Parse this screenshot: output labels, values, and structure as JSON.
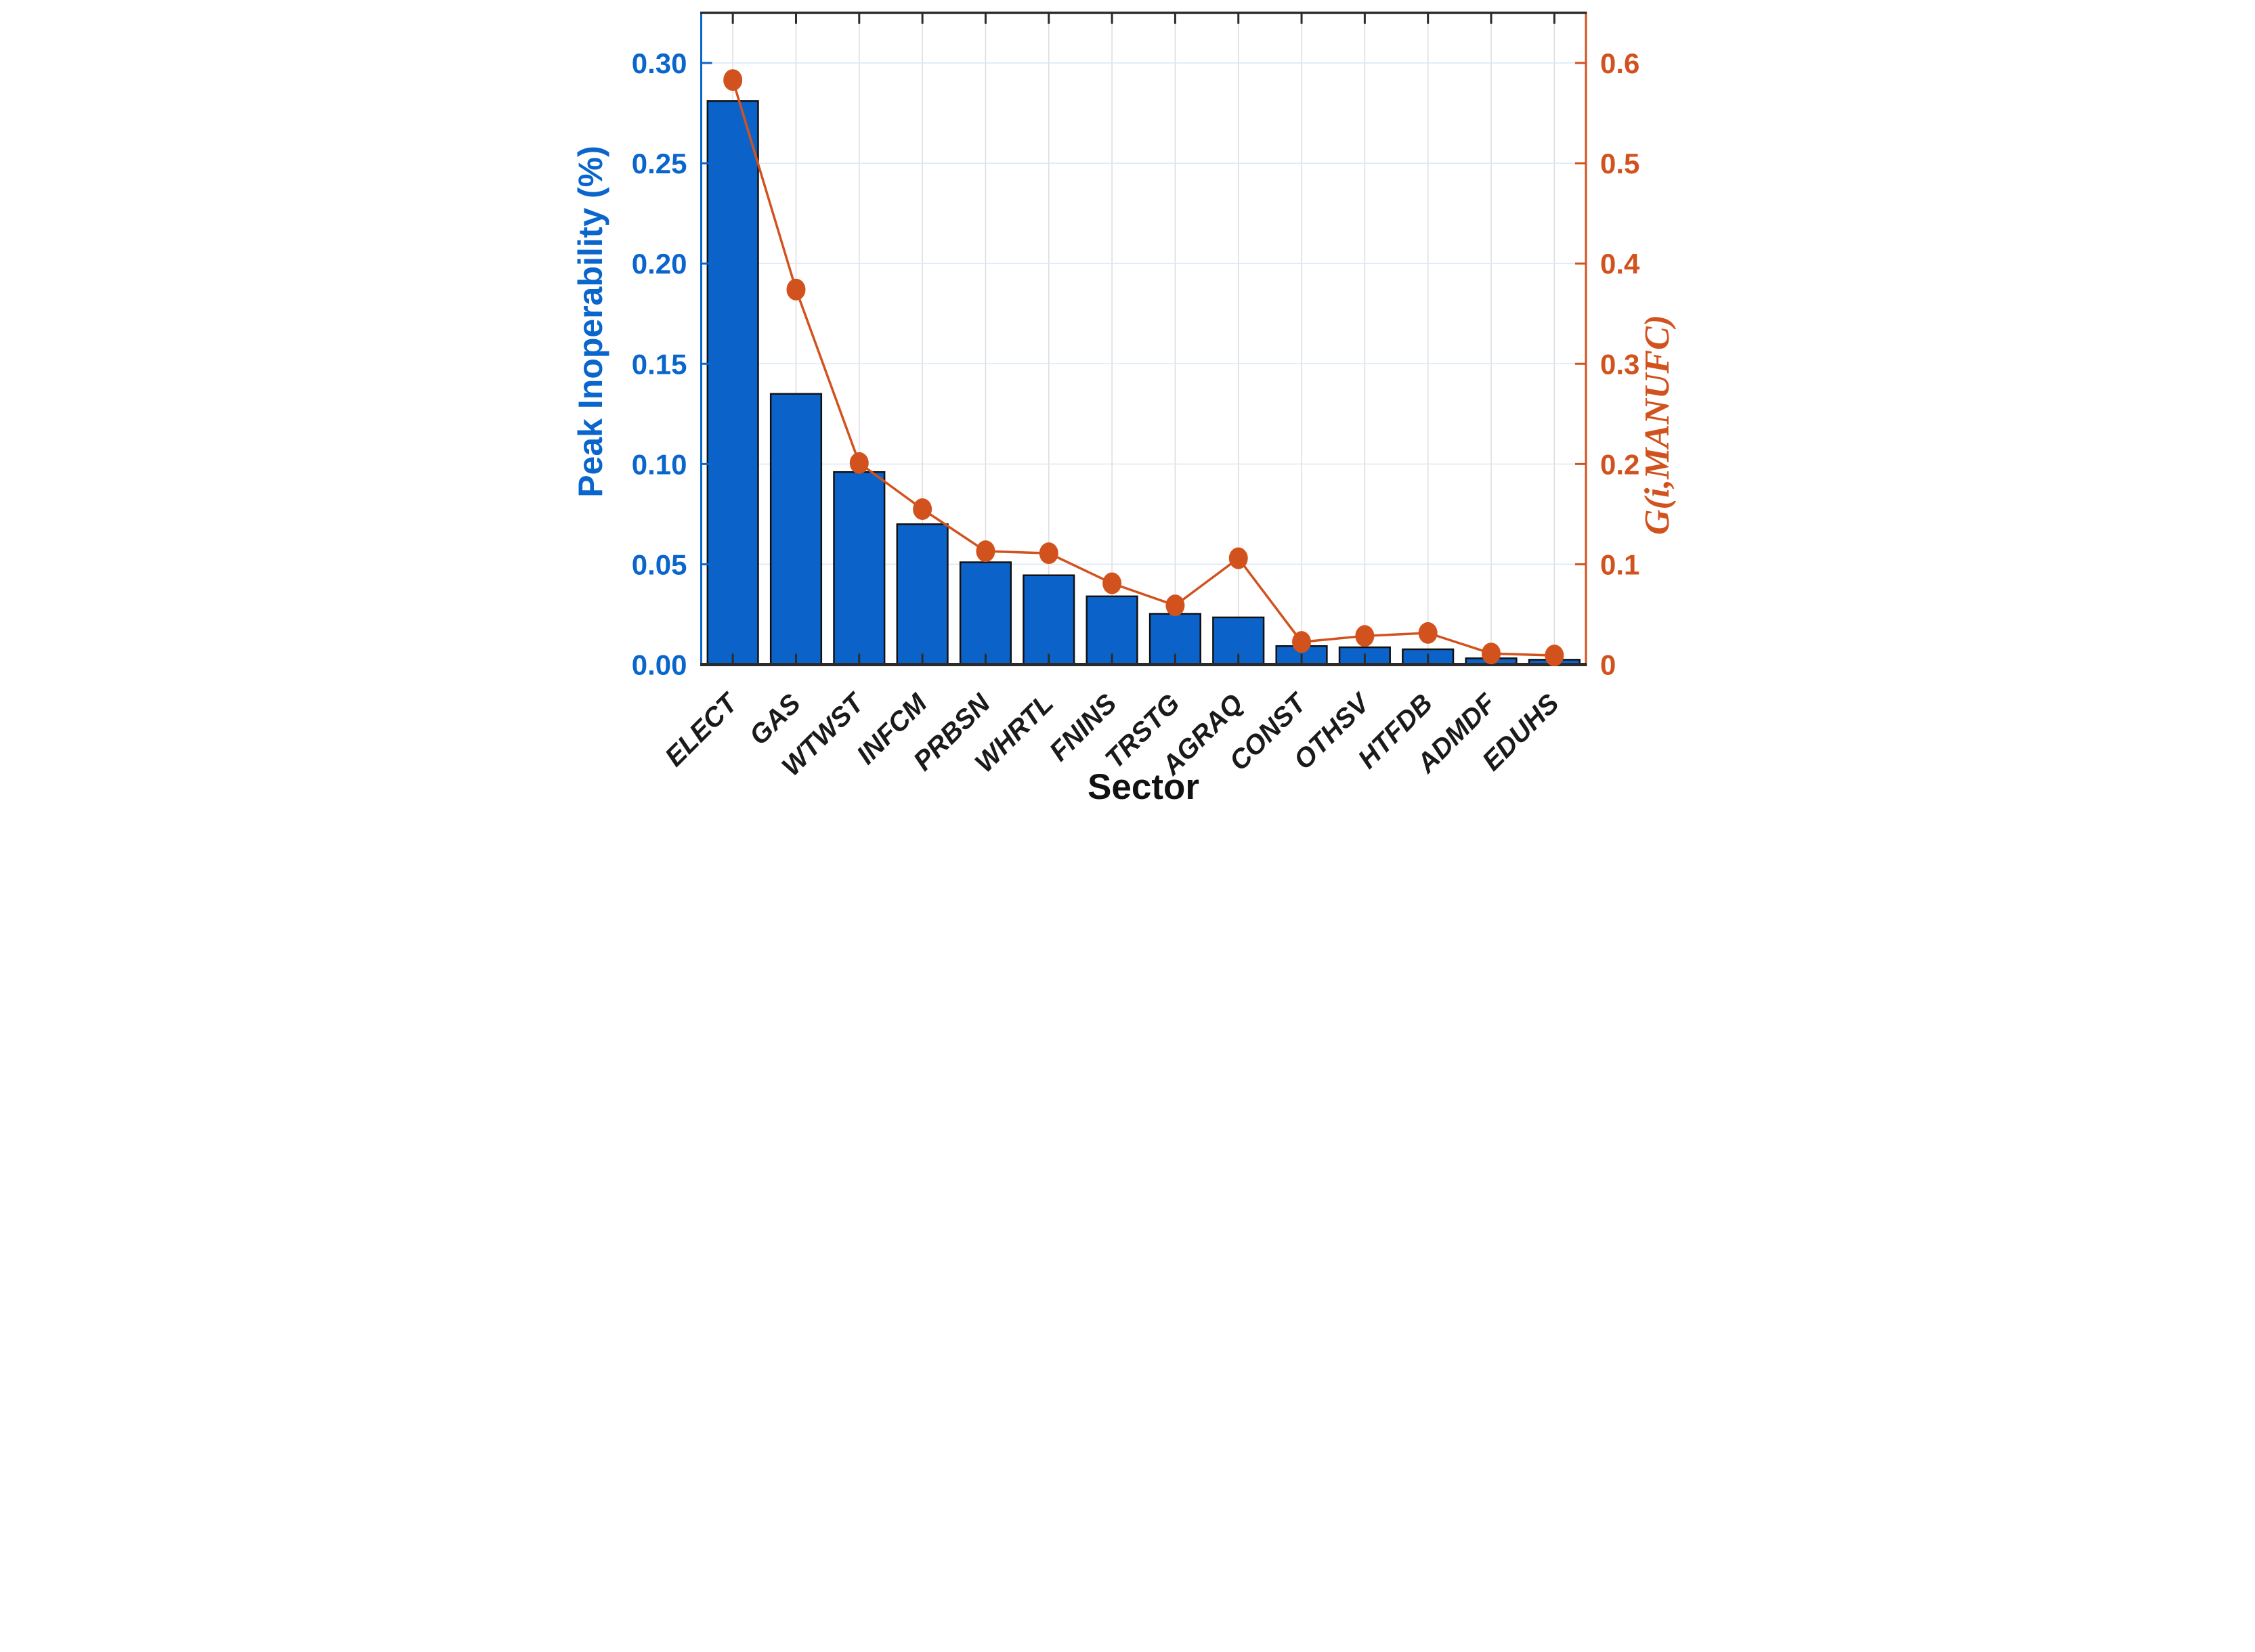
{
  "chart_data": {
    "type": "bar",
    "subtype": "dual-axis-bar-line",
    "title": "",
    "xlabel": "Sector",
    "ylabel_left": "Peak Inoperability (%)",
    "ylabel_right": "G(i,MANUFC)",
    "categories": [
      "ELECT",
      "GAS",
      "WTWST",
      "INFCM",
      "PRBSN",
      "WHRTL",
      "FNINS",
      "TRSTG",
      "AGRAQ",
      "CONST",
      "OTHSV",
      "HTFDB",
      "ADMDF",
      "EDUHS"
    ],
    "series": [
      {
        "name": "Peak Inoperability (%)",
        "type": "bar",
        "axis": "left",
        "values": [
          0.281,
          0.135,
          0.096,
          0.07,
          0.051,
          0.0445,
          0.034,
          0.0253,
          0.0235,
          0.0092,
          0.0086,
          0.0076,
          0.0031,
          0.0024
        ]
      },
      {
        "name": "G(i,MANUFC)",
        "type": "line",
        "axis": "right",
        "values": [
          0.583,
          0.374,
          0.201,
          0.155,
          0.113,
          0.111,
          0.081,
          0.059,
          0.106,
          0.0225,
          0.0285,
          0.0315,
          0.011,
          0.009
        ]
      }
    ],
    "ylim_left": [
      0,
      0.325
    ],
    "ylim_right": [
      0,
      0.65
    ],
    "yticks_left": [
      "0.00",
      "0.05",
      "0.10",
      "0.15",
      "0.20",
      "0.25",
      "0.30"
    ],
    "yticks_right": [
      "0",
      "0.1",
      "0.2",
      "0.3",
      "0.4",
      "0.5",
      "0.6"
    ],
    "grid": "on",
    "legend_position": "none"
  },
  "colors": {
    "bar_fill": "#0b63ca",
    "bar_edge": "#111111",
    "left_axis": "#0a66cc",
    "right_axis": "#d2521e",
    "line": "#d2521e",
    "marker": "#d2521e",
    "grid_horizontal": "#d9e8f7",
    "grid_vertical": "#dcdcdc",
    "frame": "#2b2b2b",
    "x_labels": "#1a1a1a"
  }
}
